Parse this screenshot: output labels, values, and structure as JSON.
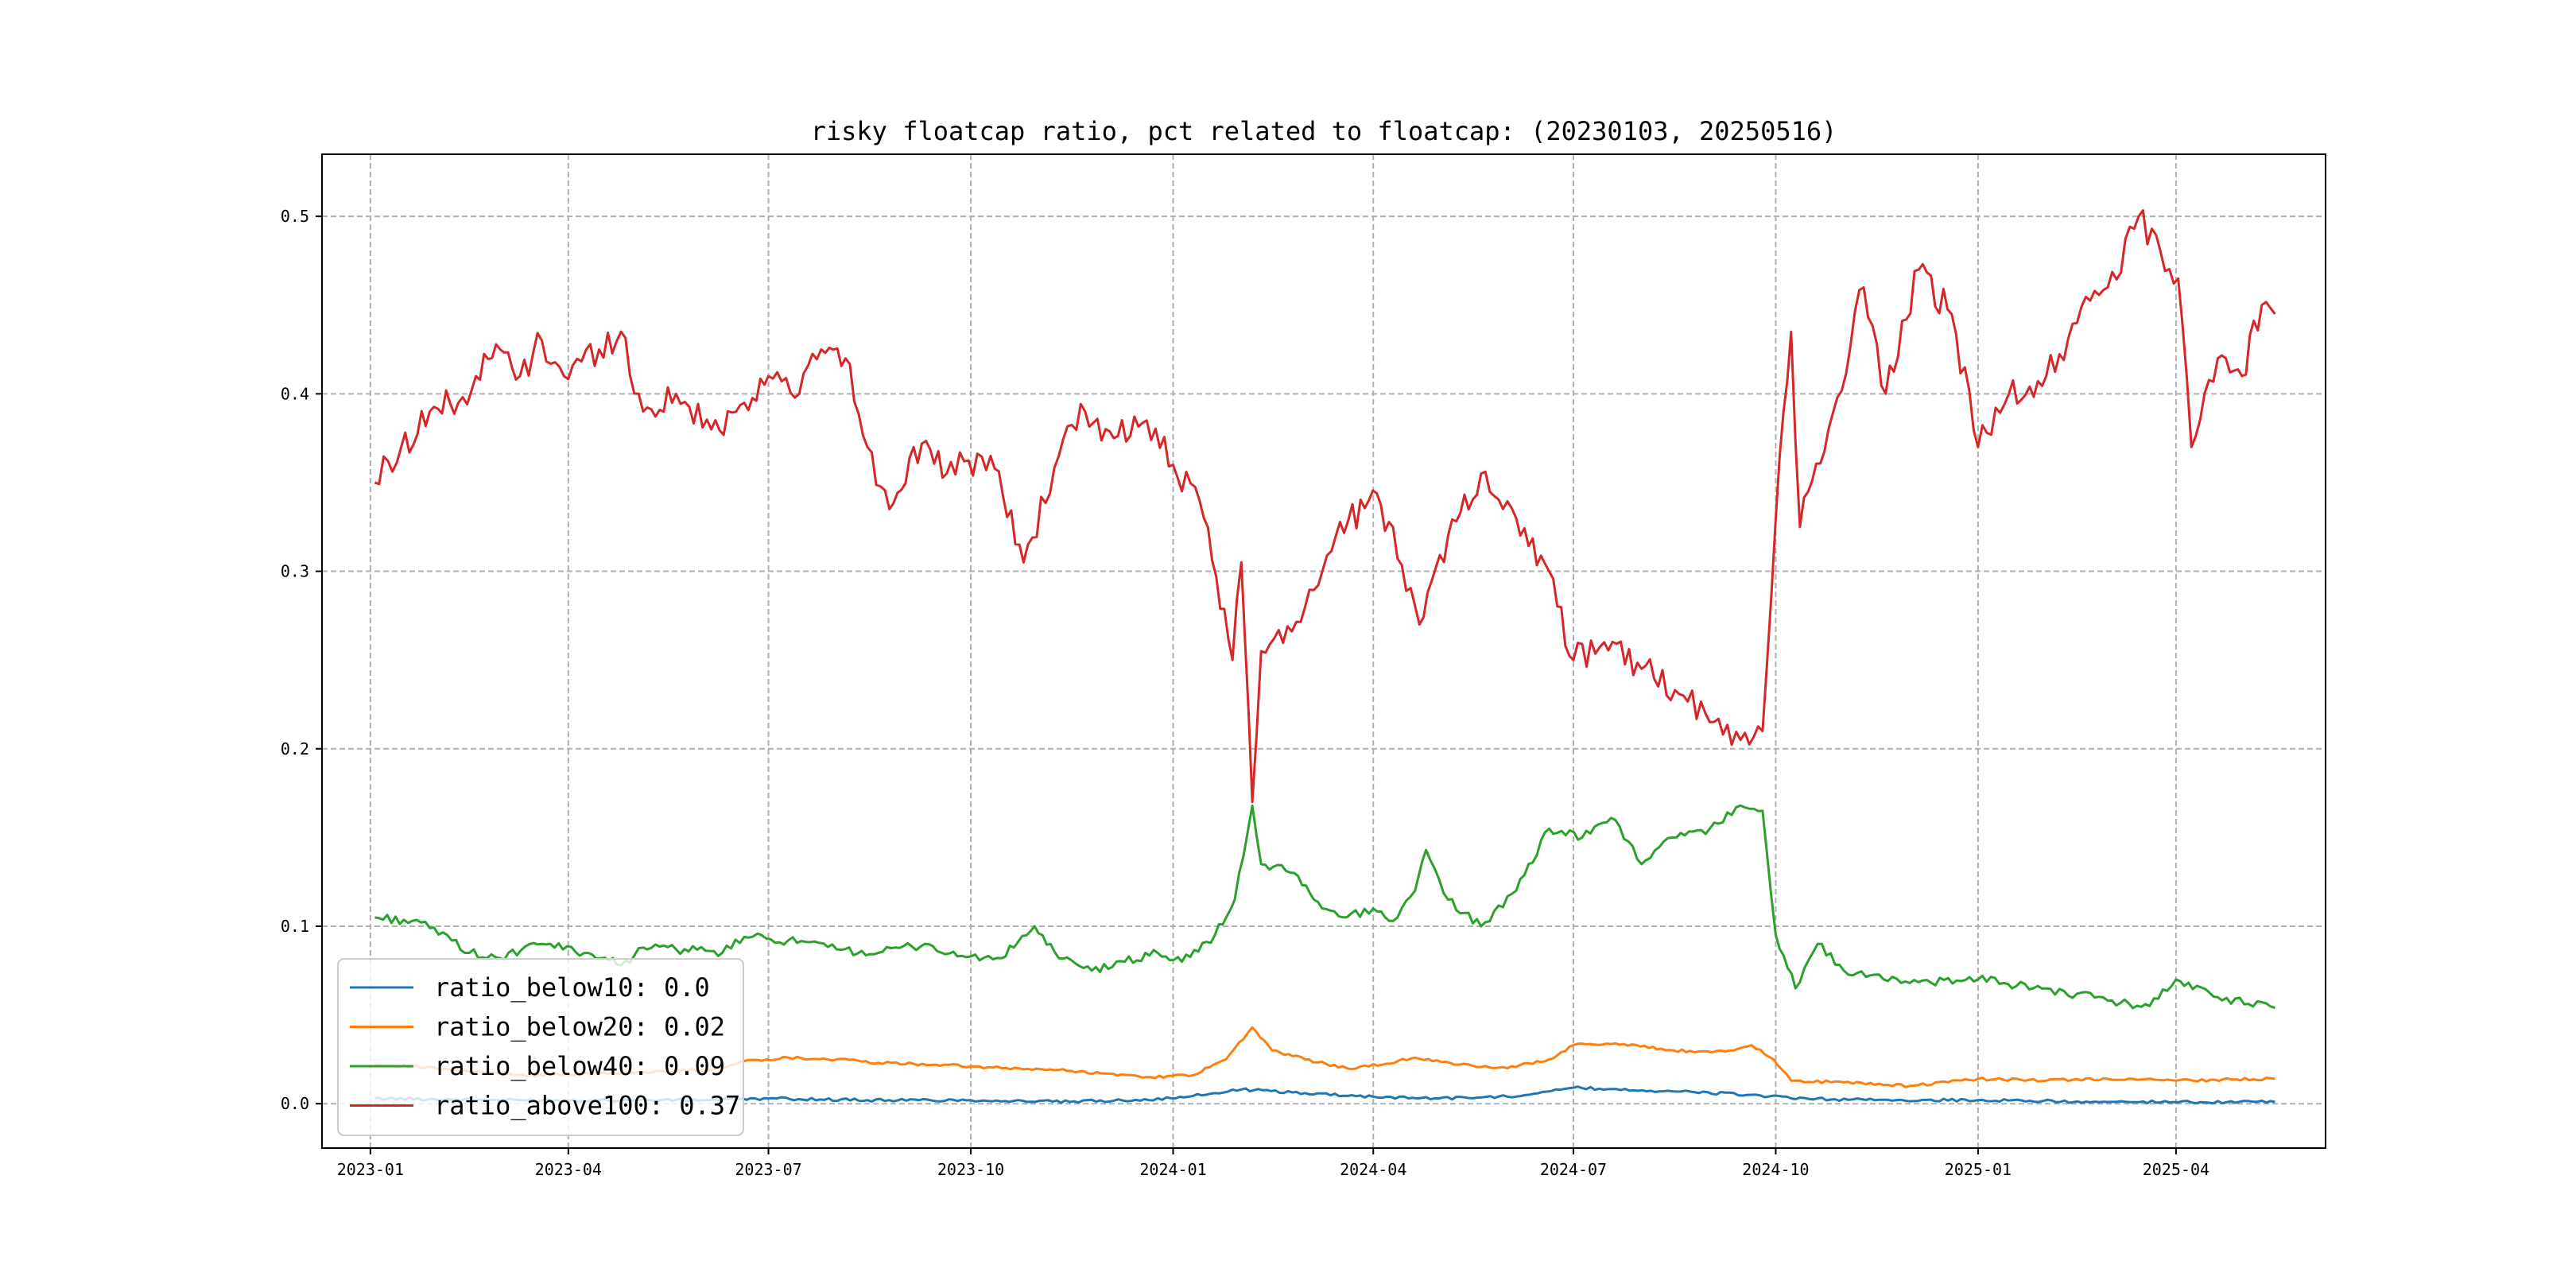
{
  "chart_data": {
    "type": "line",
    "title": "risky floatcap ratio, pct related to floatcap: (20230103, 20250516)",
    "xlabel": "",
    "ylabel": "",
    "x_range": [
      "2022-12-10",
      "2025-06-08"
    ],
    "ylim": [
      -0.025,
      0.535
    ],
    "grid": true,
    "legend_position": "lower-left",
    "x_tick_labels": [
      "2023-01",
      "2023-04",
      "2023-07",
      "2023-10",
      "2024-01",
      "2024-04",
      "2024-07",
      "2024-10",
      "2025-01",
      "2025-04"
    ],
    "x_tick_dates": [
      "2023-01-01",
      "2023-04-01",
      "2023-07-01",
      "2023-10-01",
      "2024-01-01",
      "2024-04-01",
      "2024-07-01",
      "2024-10-01",
      "2025-01-01",
      "2025-04-01"
    ],
    "y_tick_labels": [
      "0.0",
      "0.1",
      "0.2",
      "0.3",
      "0.4",
      "0.5"
    ],
    "y_ticks": [
      0.0,
      0.1,
      0.2,
      0.3,
      0.4,
      0.5
    ],
    "series": [
      {
        "name": "ratio_below10",
        "legend_label": "ratio_below10: 0.0",
        "color": "#1f77b4",
        "points": [
          [
            "2023-01-03",
            0.003
          ],
          [
            "2023-03-01",
            0.002
          ],
          [
            "2023-05-01",
            0.002
          ],
          [
            "2023-06-01",
            0.002
          ],
          [
            "2023-07-01",
            0.003
          ],
          [
            "2023-08-15",
            0.002
          ],
          [
            "2023-10-01",
            0.002
          ],
          [
            "2023-11-15",
            0.001
          ],
          [
            "2024-01-02",
            0.003
          ],
          [
            "2024-02-01",
            0.008
          ],
          [
            "2024-03-01",
            0.006
          ],
          [
            "2024-04-01",
            0.004
          ],
          [
            "2024-05-01",
            0.003
          ],
          [
            "2024-06-01",
            0.004
          ],
          [
            "2024-07-01",
            0.009
          ],
          [
            "2024-08-15",
            0.007
          ],
          [
            "2024-09-20",
            0.005
          ],
          [
            "2024-10-08",
            0.003
          ],
          [
            "2024-11-15",
            0.002
          ],
          [
            "2025-01-01",
            0.002
          ],
          [
            "2025-03-01",
            0.001
          ],
          [
            "2025-05-16",
            0.001
          ]
        ]
      },
      {
        "name": "ratio_below20",
        "legend_label": "ratio_below20: 0.02",
        "color": "#ff7f0e",
        "points": [
          [
            "2023-01-03",
            0.022
          ],
          [
            "2023-01-20",
            0.021
          ],
          [
            "2023-02-15",
            0.018
          ],
          [
            "2023-03-15",
            0.016
          ],
          [
            "2023-04-15",
            0.017
          ],
          [
            "2023-05-15",
            0.018
          ],
          [
            "2023-06-10",
            0.02
          ],
          [
            "2023-06-20",
            0.024
          ],
          [
            "2023-07-10",
            0.026
          ],
          [
            "2023-08-01",
            0.025
          ],
          [
            "2023-08-20",
            0.023
          ],
          [
            "2023-09-15",
            0.022
          ],
          [
            "2023-10-15",
            0.02
          ],
          [
            "2023-11-10",
            0.019
          ],
          [
            "2023-12-01",
            0.017
          ],
          [
            "2023-12-20",
            0.015
          ],
          [
            "2024-01-10",
            0.016
          ],
          [
            "2024-01-25",
            0.025
          ],
          [
            "2024-02-06",
            0.043
          ],
          [
            "2024-02-15",
            0.03
          ],
          [
            "2024-03-01",
            0.025
          ],
          [
            "2024-03-20",
            0.02
          ],
          [
            "2024-04-05",
            0.022
          ],
          [
            "2024-04-20",
            0.026
          ],
          [
            "2024-05-10",
            0.022
          ],
          [
            "2024-06-01",
            0.02
          ],
          [
            "2024-06-20",
            0.025
          ],
          [
            "2024-07-01",
            0.033
          ],
          [
            "2024-07-20",
            0.034
          ],
          [
            "2024-08-10",
            0.031
          ],
          [
            "2024-08-25",
            0.029
          ],
          [
            "2024-09-10",
            0.03
          ],
          [
            "2024-09-20",
            0.033
          ],
          [
            "2024-09-30",
            0.025
          ],
          [
            "2024-10-08",
            0.013
          ],
          [
            "2024-11-01",
            0.012
          ],
          [
            "2024-12-01",
            0.01
          ],
          [
            "2025-01-01",
            0.014
          ],
          [
            "2025-02-01",
            0.013
          ],
          [
            "2025-03-01",
            0.014
          ],
          [
            "2025-04-01",
            0.013
          ],
          [
            "2025-05-16",
            0.014
          ]
        ]
      },
      {
        "name": "ratio_below40",
        "legend_label": "ratio_below40: 0.09",
        "color": "#2ca02c",
        "points": [
          [
            "2023-01-03",
            0.105
          ],
          [
            "2023-01-20",
            0.103
          ],
          [
            "2023-02-05",
            0.095
          ],
          [
            "2023-02-15",
            0.085
          ],
          [
            "2023-03-01",
            0.082
          ],
          [
            "2023-03-20",
            0.09
          ],
          [
            "2023-04-10",
            0.085
          ],
          [
            "2023-04-25",
            0.078
          ],
          [
            "2023-05-05",
            0.088
          ],
          [
            "2023-05-20",
            0.087
          ],
          [
            "2023-06-10",
            0.085
          ],
          [
            "2023-06-20",
            0.094
          ],
          [
            "2023-07-10",
            0.092
          ],
          [
            "2023-08-01",
            0.087
          ],
          [
            "2023-08-20",
            0.085
          ],
          [
            "2023-09-10",
            0.09
          ],
          [
            "2023-09-25",
            0.083
          ],
          [
            "2023-10-15",
            0.082
          ],
          [
            "2023-10-30",
            0.1
          ],
          [
            "2023-11-10",
            0.082
          ],
          [
            "2023-11-25",
            0.075
          ],
          [
            "2023-12-10",
            0.08
          ],
          [
            "2023-12-25",
            0.085
          ],
          [
            "2024-01-05",
            0.08
          ],
          [
            "2024-01-20",
            0.095
          ],
          [
            "2024-01-29",
            0.115
          ],
          [
            "2024-02-06",
            0.168
          ],
          [
            "2024-02-10",
            0.135
          ],
          [
            "2024-02-25",
            0.13
          ],
          [
            "2024-03-05",
            0.115
          ],
          [
            "2024-03-20",
            0.105
          ],
          [
            "2024-04-01",
            0.11
          ],
          [
            "2024-04-10",
            0.103
          ],
          [
            "2024-04-20",
            0.12
          ],
          [
            "2024-04-25",
            0.143
          ],
          [
            "2024-05-05",
            0.115
          ],
          [
            "2024-05-20",
            0.1
          ],
          [
            "2024-06-05",
            0.12
          ],
          [
            "2024-06-20",
            0.155
          ],
          [
            "2024-07-05",
            0.15
          ],
          [
            "2024-07-20",
            0.16
          ],
          [
            "2024-08-01",
            0.135
          ],
          [
            "2024-08-15",
            0.15
          ],
          [
            "2024-09-01",
            0.155
          ],
          [
            "2024-09-15",
            0.168
          ],
          [
            "2024-09-25",
            0.165
          ],
          [
            "2024-10-01",
            0.095
          ],
          [
            "2024-10-10",
            0.065
          ],
          [
            "2024-10-20",
            0.09
          ],
          [
            "2024-11-01",
            0.075
          ],
          [
            "2024-12-01",
            0.068
          ],
          [
            "2025-01-01",
            0.07
          ],
          [
            "2025-02-01",
            0.065
          ],
          [
            "2025-03-01",
            0.058
          ],
          [
            "2025-03-20",
            0.055
          ],
          [
            "2025-04-01",
            0.07
          ],
          [
            "2025-04-20",
            0.06
          ],
          [
            "2025-05-16",
            0.054
          ]
        ]
      },
      {
        "name": "ratio_above100",
        "legend_label": "ratio_above100: 0.37",
        "color": "#d62728",
        "points": [
          [
            "2023-01-03",
            0.35
          ],
          [
            "2023-01-15",
            0.37
          ],
          [
            "2023-01-28",
            0.39
          ],
          [
            "2023-02-10",
            0.395
          ],
          [
            "2023-02-18",
            0.41
          ],
          [
            "2023-03-01",
            0.425
          ],
          [
            "2023-03-10",
            0.41
          ],
          [
            "2023-03-20",
            0.43
          ],
          [
            "2023-03-30",
            0.41
          ],
          [
            "2023-04-15",
            0.425
          ],
          [
            "2023-04-25",
            0.435
          ],
          [
            "2023-05-05",
            0.39
          ],
          [
            "2023-05-20",
            0.4
          ],
          [
            "2023-06-05",
            0.38
          ],
          [
            "2023-06-20",
            0.395
          ],
          [
            "2023-07-01",
            0.41
          ],
          [
            "2023-07-15",
            0.4
          ],
          [
            "2023-07-25",
            0.425
          ],
          [
            "2023-08-05",
            0.42
          ],
          [
            "2023-08-15",
            0.37
          ],
          [
            "2023-08-25",
            0.335
          ],
          [
            "2023-09-05",
            0.37
          ],
          [
            "2023-09-20",
            0.355
          ],
          [
            "2023-10-10",
            0.365
          ],
          [
            "2023-10-25",
            0.305
          ],
          [
            "2023-11-10",
            0.365
          ],
          [
            "2023-11-22",
            0.39
          ],
          [
            "2023-12-05",
            0.375
          ],
          [
            "2023-12-20",
            0.385
          ],
          [
            "2024-01-01",
            0.36
          ],
          [
            "2024-01-15",
            0.33
          ],
          [
            "2024-01-28",
            0.25
          ],
          [
            "2024-02-01",
            0.305
          ],
          [
            "2024-02-06",
            0.17
          ],
          [
            "2024-02-10",
            0.255
          ],
          [
            "2024-03-01",
            0.28
          ],
          [
            "2024-03-15",
            0.32
          ],
          [
            "2024-03-30",
            0.34
          ],
          [
            "2024-04-10",
            0.325
          ],
          [
            "2024-04-22",
            0.27
          ],
          [
            "2024-05-05",
            0.32
          ],
          [
            "2024-05-20",
            0.355
          ],
          [
            "2024-06-05",
            0.33
          ],
          [
            "2024-06-20",
            0.3
          ],
          [
            "2024-07-01",
            0.25
          ],
          [
            "2024-07-15",
            0.26
          ],
          [
            "2024-08-01",
            0.245
          ],
          [
            "2024-08-20",
            0.23
          ],
          [
            "2024-09-01",
            0.215
          ],
          [
            "2024-09-15",
            0.205
          ],
          [
            "2024-09-25",
            0.21
          ],
          [
            "2024-10-01",
            0.33
          ],
          [
            "2024-10-08",
            0.435
          ],
          [
            "2024-10-12",
            0.325
          ],
          [
            "2024-10-25",
            0.38
          ],
          [
            "2024-11-10",
            0.46
          ],
          [
            "2024-11-20",
            0.4
          ],
          [
            "2024-12-05",
            0.47
          ],
          [
            "2024-12-20",
            0.445
          ],
          [
            "2025-01-01",
            0.37
          ],
          [
            "2025-01-15",
            0.4
          ],
          [
            "2025-02-01",
            0.41
          ],
          [
            "2025-02-15",
            0.44
          ],
          [
            "2025-03-01",
            0.46
          ],
          [
            "2025-03-15",
            0.5
          ],
          [
            "2025-03-25",
            0.48
          ],
          [
            "2025-04-02",
            0.465
          ],
          [
            "2025-04-08",
            0.37
          ],
          [
            "2025-04-20",
            0.42
          ],
          [
            "2025-05-01",
            0.41
          ],
          [
            "2025-05-10",
            0.45
          ],
          [
            "2025-05-16",
            0.445
          ]
        ]
      }
    ]
  }
}
